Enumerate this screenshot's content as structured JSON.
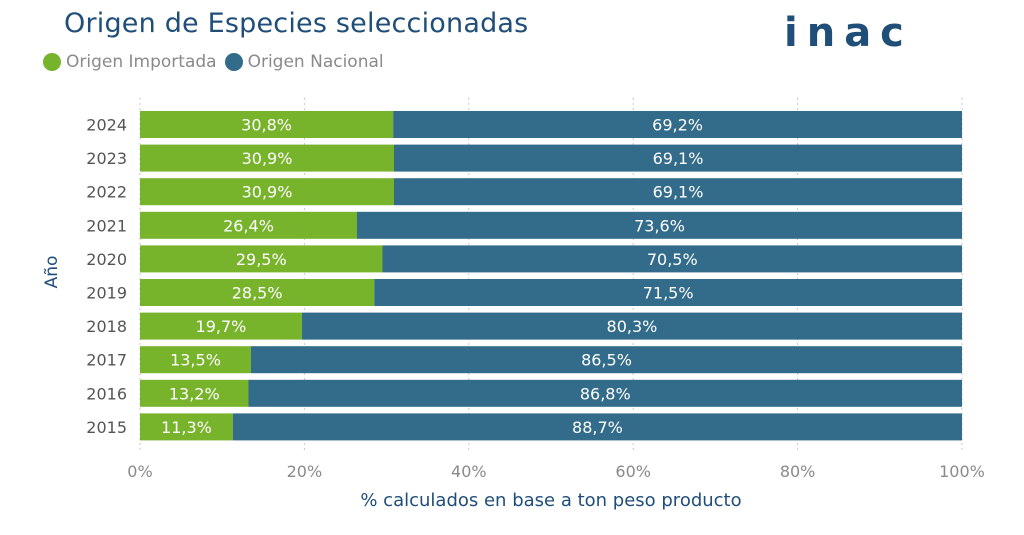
{
  "chart_data": {
    "type": "bar",
    "orientation": "horizontal",
    "stacked": true,
    "title": "Origen de Especies seleccionadas",
    "logo_text": "inac",
    "xlabel": "% calculados en base a ton peso producto",
    "ylabel": "Año",
    "xlim": [
      0,
      100
    ],
    "x_ticks": [
      "0%",
      "20%",
      "40%",
      "60%",
      "80%",
      "100%"
    ],
    "x_tick_values": [
      0,
      20,
      40,
      60,
      80,
      100
    ],
    "grid": true,
    "legend_position": "top-left",
    "categories": [
      "2024",
      "2023",
      "2022",
      "2021",
      "2020",
      "2019",
      "2018",
      "2017",
      "2016",
      "2015"
    ],
    "series": [
      {
        "name": "Origen Importada",
        "color": "#77b32b",
        "values": [
          30.8,
          30.9,
          30.9,
          26.4,
          29.5,
          28.5,
          19.7,
          13.5,
          13.2,
          11.3
        ],
        "labels": [
          "30,8%",
          "30,9%",
          "30,9%",
          "26,4%",
          "29,5%",
          "28,5%",
          "19,7%",
          "13,5%",
          "13,2%",
          "11,3%"
        ]
      },
      {
        "name": "Origen Nacional",
        "color": "#336b8a",
        "values": [
          69.2,
          69.1,
          69.1,
          73.6,
          70.5,
          71.5,
          80.3,
          86.5,
          86.8,
          88.7
        ],
        "labels": [
          "69,2%",
          "69,1%",
          "69,1%",
          "73,6%",
          "70,5%",
          "71,5%",
          "80,3%",
          "86,5%",
          "86,8%",
          "88,7%"
        ]
      }
    ]
  }
}
